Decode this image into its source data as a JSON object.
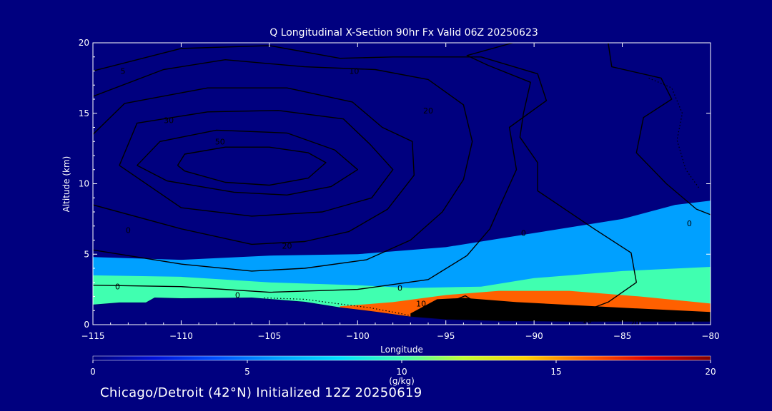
{
  "chart_data": {
    "type": "area",
    "title": "Q Longitudinal X-Section 90hr  Fx Valid 06Z 20250623",
    "xlabel": "Longitude",
    "ylabel": "Altitude (km)",
    "xlim": [
      -115,
      -80
    ],
    "ylim": [
      0,
      20
    ],
    "x_ticks": [
      -115,
      -110,
      -105,
      -100,
      -95,
      -90,
      -85,
      -80
    ],
    "y_ticks": [
      0,
      5,
      10,
      15,
      20
    ],
    "x_tick_labels": [
      "−115",
      "−110",
      "−105",
      "−100",
      "−95",
      "−90",
      "−85",
      "−80"
    ],
    "y_tick_labels": [
      "0",
      "5",
      "10",
      "15",
      "20"
    ],
    "filled_field": {
      "name": "Specific humidity",
      "units": "(g/kg)",
      "colorbar_range": [
        0,
        20
      ],
      "colorbar_ticks": [
        0,
        5,
        10,
        15,
        20
      ],
      "colorbar_tick_labels": [
        "0",
        "5",
        "10",
        "15",
        "20"
      ],
      "colors": [
        "#00007f",
        "#0010d8",
        "#0050ff",
        "#00a0ff",
        "#00e0ff",
        "#40ffb0",
        "#c0ff30",
        "#ffd000",
        "#ff6000",
        "#e00000",
        "#800000"
      ],
      "regions": [
        {
          "level": 3,
          "polygon": [
            [
              -115,
              0.5
            ],
            [
              -115,
              4.8
            ],
            [
              -110,
              4.6
            ],
            [
              -105,
              4.9
            ],
            [
              -100,
              5.0
            ],
            [
              -95,
              5.5
            ],
            [
              -90,
              6.5
            ],
            [
              -85,
              7.5
            ],
            [
              -82,
              8.5
            ],
            [
              -80,
              8.8
            ],
            [
              -80,
              0.5
            ]
          ]
        },
        {
          "level": 5,
          "polygon": [
            [
              -115,
              0.5
            ],
            [
              -115,
              3.5
            ],
            [
              -110,
              3.4
            ],
            [
              -105,
              3.0
            ],
            [
              -100,
              2.8
            ],
            [
              -97,
              2.6
            ],
            [
              -93,
              2.7
            ],
            [
              -90,
              3.3
            ],
            [
              -85,
              3.8
            ],
            [
              -80,
              4.1
            ],
            [
              -80,
              0.5
            ]
          ]
        },
        {
          "level": 8,
          "polygon": [
            [
              -101,
              1.3
            ],
            [
              -98,
              1.6
            ],
            [
              -95,
              2.1
            ],
            [
              -92,
              2.4
            ],
            [
              -88,
              2.4
            ],
            [
              -84,
              2.0
            ],
            [
              -80,
              1.5
            ],
            [
              -80,
              0.3
            ],
            [
              -101,
              0.3
            ]
          ]
        },
        {
          "level": 11,
          "polygon": [
            [
              -97,
              0.8
            ],
            [
              -95.5,
              1.8
            ],
            [
              -94,
              1.9
            ],
            [
              -91,
              1.6
            ],
            [
              -85,
              1.2
            ],
            [
              -80,
              0.9
            ],
            [
              -80,
              0.2
            ],
            [
              -97,
              0.2
            ]
          ]
        },
        {
          "level": 14,
          "polygon": [
            [
              -95.8,
              0.7
            ],
            [
              -95,
              1.5
            ],
            [
              -93.5,
              1.6
            ],
            [
              -90,
              1.4
            ],
            [
              -86,
              1.0
            ],
            [
              -82,
              0.7
            ],
            [
              -80,
              0.5
            ],
            [
              -80,
              0.1
            ],
            [
              -95.8,
              0.1
            ]
          ]
        },
        {
          "level": 17,
          "polygon": [
            [
              -92,
              0.4
            ],
            [
              -90,
              0.9
            ],
            [
              -87,
              0.9
            ],
            [
              -84,
              0.6
            ],
            [
              -82,
              0.4
            ],
            [
              -82,
              0.1
            ],
            [
              -92,
              0.1
            ]
          ]
        }
      ]
    },
    "terrain": [
      [
        -115,
        1.4
      ],
      [
        -113.5,
        1.55
      ],
      [
        -112,
        1.55
      ],
      [
        -111.5,
        1.9
      ],
      [
        -110,
        1.85
      ],
      [
        -106,
        1.9
      ],
      [
        -103,
        1.6
      ],
      [
        -101,
        1.2
      ],
      [
        -99,
        0.9
      ],
      [
        -97,
        0.55
      ],
      [
        -95,
        0.35
      ],
      [
        -92,
        0.25
      ],
      [
        -88,
        0.2
      ],
      [
        -84,
        0.2
      ],
      [
        -80,
        0.2
      ]
    ],
    "contour_lines": [
      {
        "label": "50",
        "level": 50,
        "points": [
          [
            -110.2,
            11.3
          ],
          [
            -109.8,
            12.1
          ],
          [
            -107.5,
            12.6
          ],
          [
            -105,
            12.6
          ],
          [
            -102.8,
            12.2
          ],
          [
            -101.8,
            11.5
          ],
          [
            -102.8,
            10.4
          ],
          [
            -105,
            9.9
          ],
          [
            -107.5,
            10.1
          ],
          [
            -109.8,
            10.9
          ],
          [
            -110.2,
            11.3
          ]
        ]
      },
      {
        "label": "40",
        "level": 40,
        "points": [
          [
            -112.5,
            11.3
          ],
          [
            -111.2,
            13.0
          ],
          [
            -108,
            13.8
          ],
          [
            -104,
            13.6
          ],
          [
            -101.3,
            12.4
          ],
          [
            -100,
            11.0
          ],
          [
            -101.5,
            9.8
          ],
          [
            -104,
            9.2
          ],
          [
            -107,
            9.4
          ],
          [
            -110.8,
            10.2
          ],
          [
            -112.5,
            11.3
          ]
        ]
      },
      {
        "label": "30",
        "level": 30,
        "points": [
          [
            -113.5,
            11.3
          ],
          [
            -112.5,
            14.3
          ],
          [
            -108.5,
            15.1
          ],
          [
            -104.5,
            15.2
          ],
          [
            -100.8,
            14.6
          ],
          [
            -99.3,
            12.8
          ],
          [
            -98,
            11.0
          ],
          [
            -99.2,
            9.0
          ],
          [
            -102,
            8.0
          ],
          [
            -106,
            7.7
          ],
          [
            -110,
            8.3
          ],
          [
            -113.5,
            11.3
          ]
        ]
      },
      {
        "label": "20",
        "level": 20,
        "points": [
          [
            -115,
            13.5
          ],
          [
            -113.2,
            15.7
          ],
          [
            -108.5,
            16.8
          ],
          [
            -104,
            16.8
          ],
          [
            -100.3,
            15.8
          ],
          [
            -98.6,
            14.0
          ],
          [
            -96.9,
            13.0
          ],
          [
            -96.8,
            10.6
          ],
          [
            -98.3,
            8.2
          ],
          [
            -100.5,
            6.6
          ],
          [
            -103,
            5.9
          ],
          [
            -106,
            5.7
          ],
          [
            -110,
            6.8
          ],
          [
            -115,
            8.5
          ]
        ]
      },
      {
        "label": "10",
        "level": 10,
        "points": [
          [
            -115,
            16.2
          ],
          [
            -111,
            18.1
          ],
          [
            -107.5,
            18.8
          ],
          [
            -103,
            18.3
          ],
          [
            -99,
            18.1
          ],
          [
            -96,
            17.4
          ],
          [
            -94,
            15.6
          ],
          [
            -93.5,
            13.0
          ],
          [
            -94,
            10.3
          ],
          [
            -95.2,
            8.0
          ],
          [
            -97,
            6.0
          ],
          [
            -99.5,
            4.6
          ],
          [
            -103,
            4.0
          ],
          [
            -106,
            3.8
          ],
          [
            -110,
            4.3
          ],
          [
            -115,
            5.3
          ]
        ]
      },
      {
        "label": "5",
        "level": 5,
        "points": [
          [
            -115,
            18.0
          ],
          [
            -110,
            19.6
          ],
          [
            -105,
            19.8
          ],
          [
            -101,
            18.9
          ],
          [
            -98,
            19.0
          ],
          [
            -93,
            19.0
          ],
          [
            -89.8,
            17.8
          ],
          [
            -89.3,
            15.9
          ],
          [
            -91.4,
            14.0
          ],
          [
            -91,
            11.0
          ],
          [
            -91.9,
            8.5
          ],
          [
            -92.5,
            6.8
          ],
          [
            -93.8,
            4.9
          ],
          [
            -96,
            3.2
          ],
          [
            -100,
            2.5
          ],
          [
            -105,
            2.3
          ],
          [
            -110,
            2.7
          ],
          [
            -115,
            2.8
          ]
        ]
      },
      {
        "label": "0",
        "level": 0,
        "points": [
          [
            -91.2,
            20.0
          ],
          [
            -93.8,
            19.1
          ],
          [
            -92.6,
            18.4
          ],
          [
            -90.2,
            17.2
          ],
          [
            -90.6,
            15.0
          ],
          [
            -90.8,
            13.3
          ],
          [
            -89.8,
            11.5
          ],
          [
            -89.8,
            9.5
          ],
          [
            -88.5,
            8.4
          ],
          [
            -86.6,
            6.8
          ],
          [
            -84.5,
            5.1
          ],
          [
            -84.2,
            3.0
          ],
          [
            -85.8,
            1.6
          ],
          [
            -87.5,
            0.8
          ]
        ]
      },
      {
        "label": "",
        "level": 0,
        "points": [
          [
            -85.8,
            20.0
          ],
          [
            -85.6,
            18.3
          ],
          [
            -82.8,
            17.5
          ],
          [
            -82.2,
            16.0
          ],
          [
            -83.8,
            14.7
          ],
          [
            -84.2,
            12.2
          ],
          [
            -82.5,
            10.0
          ],
          [
            -80.8,
            8.2
          ],
          [
            -80,
            7.8
          ]
        ]
      },
      {
        "label": "10",
        "level": 10,
        "points": [
          [
            -93.8,
            0.4
          ],
          [
            -93,
            0.9
          ],
          [
            -91,
            1.15
          ],
          [
            -88,
            1.2
          ],
          [
            -85,
            0.95
          ],
          [
            -82,
            0.75
          ],
          [
            -80,
            0.6
          ]
        ]
      },
      {
        "label": "20",
        "level": 20,
        "points": [
          [
            -93.5,
            0.3
          ],
          [
            -92.5,
            0.65
          ],
          [
            -89,
            0.8
          ],
          [
            -86,
            0.6
          ],
          [
            -83,
            0.35
          ],
          [
            -81,
            0.25
          ]
        ]
      },
      {
        "label": "",
        "level": 10,
        "points": [
          [
            -95,
            0.5
          ],
          [
            -94.8,
            1.6
          ],
          [
            -93.9,
            2.05
          ],
          [
            -93.2,
            1.5
          ],
          [
            -93.3,
            0.5
          ]
        ]
      }
    ],
    "dotted_contours": [
      {
        "label": "0",
        "points": [
          [
            -105.3,
            1.9
          ],
          [
            -103,
            1.8
          ],
          [
            -101.2,
            1.5
          ],
          [
            -99.3,
            1.2
          ],
          [
            -97.6,
            0.8
          ],
          [
            -96.5,
            0.5
          ]
        ]
      },
      {
        "label": "",
        "points": [
          [
            -83.5,
            17.5
          ],
          [
            -82.2,
            16.8
          ],
          [
            -81.6,
            15.0
          ],
          [
            -81.9,
            13.1
          ],
          [
            -81.4,
            11.0
          ],
          [
            -80.6,
            9.6
          ]
        ]
      }
    ],
    "contour_labels": [
      {
        "text": "5",
        "x": -113.3,
        "y": 18.0
      },
      {
        "text": "10",
        "x": -100.2,
        "y": 18.0
      },
      {
        "text": "20",
        "x": -96.0,
        "y": 15.2
      },
      {
        "text": "30",
        "x": -110.7,
        "y": 14.5
      },
      {
        "text": "50",
        "x": -107.8,
        "y": 13.0
      },
      {
        "text": "0",
        "x": -113.0,
        "y": 6.7
      },
      {
        "text": "20",
        "x": -104.0,
        "y": 5.6
      },
      {
        "text": "0",
        "x": -90.6,
        "y": 6.5
      },
      {
        "text": "0",
        "x": -113.6,
        "y": 2.7
      },
      {
        "text": "0",
        "x": -106.8,
        "y": 2.1
      },
      {
        "text": "0",
        "x": -97.6,
        "y": 2.6
      },
      {
        "text": "10",
        "x": -96.4,
        "y": 1.5
      },
      {
        "text": "10",
        "x": -87.0,
        "y": 0.3
      },
      {
        "text": "20",
        "x": -84.3,
        "y": 0.1
      },
      {
        "text": "0",
        "x": -81.2,
        "y": 7.2
      }
    ],
    "colorbar_label": "(g/kg)"
  },
  "caption": "Chicago/Detroit (42°N) Initialized 12Z 20250619",
  "colors": {
    "background": "#00007f",
    "text": "#ffffff",
    "contour": "#000000"
  }
}
